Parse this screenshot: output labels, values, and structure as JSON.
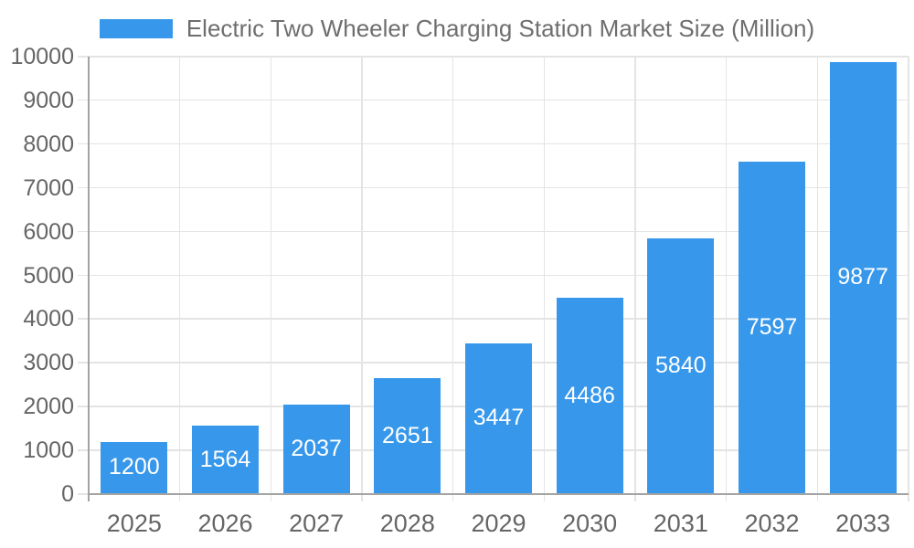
{
  "chart_data": {
    "type": "bar",
    "title": "",
    "series_name": "Electric Two Wheeler Charging Station Market Size (Million)",
    "categories": [
      "2025",
      "2026",
      "2027",
      "2028",
      "2029",
      "2030",
      "2031",
      "2032",
      "2033"
    ],
    "values": [
      1200,
      1564,
      2037,
      2651,
      3447,
      4486,
      5840,
      7597,
      9877
    ],
    "xlabel": "",
    "ylabel": "",
    "ylim": [
      0,
      10000
    ],
    "y_ticks": [
      0,
      1000,
      2000,
      3000,
      4000,
      5000,
      6000,
      7000,
      8000,
      9000,
      10000
    ],
    "grid": true,
    "legend_position": "top",
    "value_labels": "inside-center",
    "colors": {
      "bar": "#3798EB",
      "grid": "#E4E4E4",
      "axis": "#A3A3A3",
      "tick_text": "#666666",
      "legend_text": "#6E6E6E",
      "value_label_text": "#FFFFFF",
      "background": "#FFFFFF"
    }
  }
}
